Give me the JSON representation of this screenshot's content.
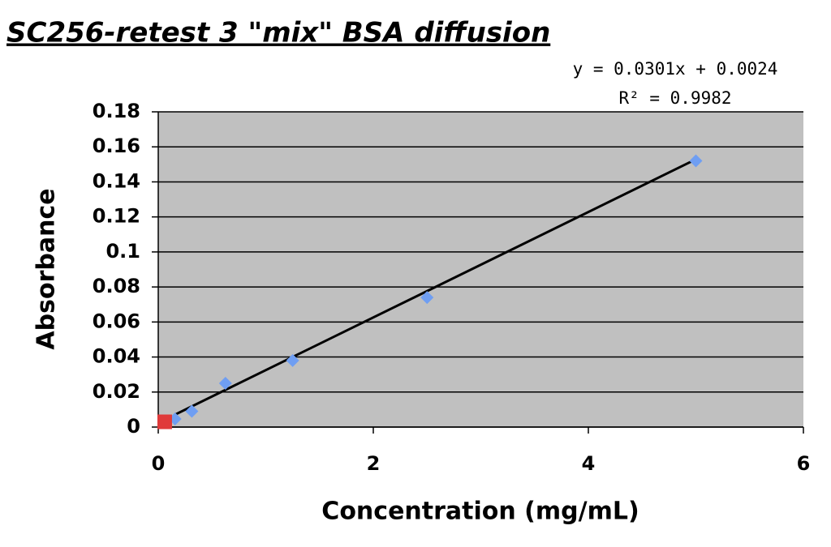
{
  "chart_data": {
    "type": "scatter",
    "title": "SC256-retest 3 \"mix\" BSA diffusion",
    "x_label": "Concentration (mg/mL)",
    "y_label": "Absorbance",
    "xlim": [
      0,
      6
    ],
    "xticks": [
      0,
      2,
      4,
      6
    ],
    "ylim": [
      0,
      0.18
    ],
    "yticks": [
      0,
      0.02,
      0.04,
      0.06,
      0.08,
      0.1,
      0.12,
      0.14,
      0.16,
      0.18
    ],
    "grid": true,
    "series": [
      {
        "color": "#6f9ef2",
        "marker": "diamond",
        "x": [
          0.156,
          0.3125,
          0.625,
          1.25,
          2.5,
          5
        ],
        "values": [
          0.0046,
          0.009,
          0.025,
          0.038,
          0.074,
          0.152
        ]
      },
      {
        "color": "#e03a3a",
        "marker": "square",
        "x": [
          0.06
        ],
        "values": [
          0.003
        ]
      }
    ],
    "trendline": {
      "slope": 0.0301,
      "intercept": 0.0024,
      "color": "#000000",
      "equation_label": "y = 0.0301x + 0.0024",
      "r_squared_label": "R² = 0.9982"
    }
  }
}
